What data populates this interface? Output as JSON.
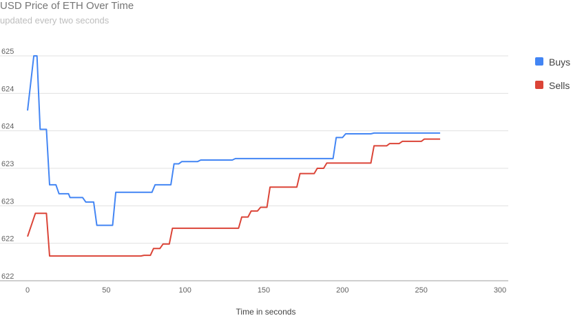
{
  "chart_data": {
    "type": "line",
    "title": "USD Price of ETH Over Time",
    "subtitle": "updated every two seconds",
    "xlabel": "Time in seconds",
    "ylabel": "",
    "xlim": [
      0,
      300
    ],
    "ylim": [
      622.0,
      625.0
    ],
    "x_ticks": [
      "0",
      "50",
      "100",
      "150",
      "200",
      "250",
      "300"
    ],
    "y_ticks": [
      "622",
      "622",
      "623",
      "623",
      "624",
      "624",
      "625"
    ],
    "grid": true,
    "legend_position": "right",
    "series": [
      {
        "name": "Buys",
        "color": "#4285f4",
        "points": [
          [
            0,
            624.27
          ],
          [
            4,
            625.0
          ],
          [
            6,
            625.0
          ],
          [
            8,
            624.02
          ],
          [
            12,
            624.02
          ],
          [
            14,
            623.28
          ],
          [
            18,
            623.28
          ],
          [
            20,
            623.16
          ],
          [
            26,
            623.16
          ],
          [
            27,
            623.11
          ],
          [
            35,
            623.11
          ],
          [
            37,
            623.05
          ],
          [
            42,
            623.05
          ],
          [
            44,
            622.74
          ],
          [
            54,
            622.74
          ],
          [
            56,
            623.18
          ],
          [
            79,
            623.18
          ],
          [
            81,
            623.28
          ],
          [
            91,
            623.28
          ],
          [
            93,
            623.56
          ],
          [
            96,
            623.56
          ],
          [
            98,
            623.59
          ],
          [
            108,
            623.59
          ],
          [
            110,
            623.61
          ],
          [
            130,
            623.61
          ],
          [
            132,
            623.63
          ],
          [
            194,
            623.63
          ],
          [
            196,
            623.91
          ],
          [
            200,
            623.91
          ],
          [
            202,
            623.96
          ],
          [
            218,
            623.96
          ],
          [
            220,
            623.97
          ],
          [
            262,
            623.97
          ]
        ]
      },
      {
        "name": "Sells",
        "color": "#db4437",
        "points": [
          [
            0,
            622.59
          ],
          [
            5,
            622.9
          ],
          [
            12,
            622.9
          ],
          [
            14,
            622.33
          ],
          [
            72,
            622.33
          ],
          [
            74,
            622.34
          ],
          [
            78,
            622.34
          ],
          [
            80,
            622.43
          ],
          [
            84,
            622.43
          ],
          [
            86,
            622.49
          ],
          [
            90,
            622.49
          ],
          [
            92,
            622.7
          ],
          [
            134,
            622.7
          ],
          [
            136,
            622.85
          ],
          [
            140,
            622.85
          ],
          [
            142,
            622.93
          ],
          [
            146,
            622.93
          ],
          [
            148,
            622.98
          ],
          [
            152,
            622.98
          ],
          [
            154,
            623.25
          ],
          [
            171,
            623.25
          ],
          [
            173,
            623.43
          ],
          [
            182,
            623.43
          ],
          [
            184,
            623.5
          ],
          [
            188,
            623.5
          ],
          [
            190,
            623.57
          ],
          [
            218,
            623.57
          ],
          [
            220,
            623.8
          ],
          [
            228,
            623.8
          ],
          [
            230,
            623.83
          ],
          [
            236,
            623.83
          ],
          [
            238,
            623.86
          ],
          [
            250,
            623.86
          ],
          [
            252,
            623.89
          ],
          [
            262,
            623.89
          ]
        ]
      }
    ]
  }
}
